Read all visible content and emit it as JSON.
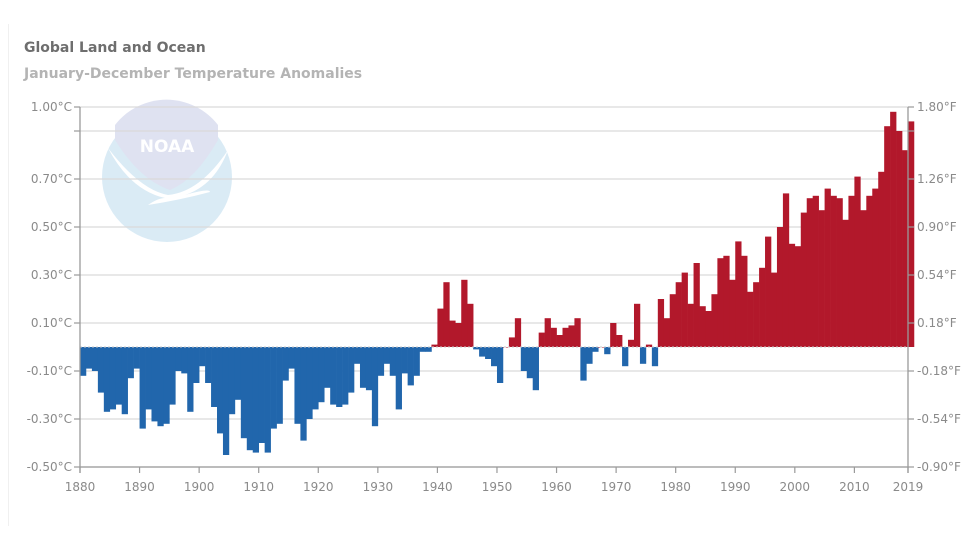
{
  "header": {
    "title": "Global Land and Ocean",
    "subtitle": "January-December Temperature Anomalies"
  },
  "logo": {
    "text": "NOAA"
  },
  "colors": {
    "positive": "#b2182b",
    "negative": "#2166ac",
    "grid": "#d9d9d9",
    "axis": "#9a9a9a",
    "text": "#8a8a8a"
  },
  "chart_data": {
    "type": "bar",
    "title": "Global Land and Ocean",
    "subtitle": "January-December Temperature Anomalies",
    "xlabel": "",
    "ylabel": "",
    "ylim": [
      -0.5,
      1.0
    ],
    "xlim": [
      1880,
      2019
    ],
    "grid": true,
    "y_left_ticks": [
      {
        "value": 1.0,
        "label": "1.00°C"
      },
      {
        "value": 0.9,
        "label": ""
      },
      {
        "value": 0.7,
        "label": "0.70°C"
      },
      {
        "value": 0.5,
        "label": "0.50°C"
      },
      {
        "value": 0.3,
        "label": "0.30°C"
      },
      {
        "value": 0.1,
        "label": "0.10°C"
      },
      {
        "value": -0.1,
        "label": "-0.10°C"
      },
      {
        "value": -0.3,
        "label": "-0.30°C"
      },
      {
        "value": -0.5,
        "label": "-0.50°C"
      }
    ],
    "y_right_ticks": [
      {
        "value": 1.0,
        "label": "1.80°F"
      },
      {
        "value": 0.9,
        "label": ""
      },
      {
        "value": 0.7,
        "label": "1.26°F"
      },
      {
        "value": 0.5,
        "label": "0.90°F"
      },
      {
        "value": 0.3,
        "label": "0.54°F"
      },
      {
        "value": 0.1,
        "label": "0.18°F"
      },
      {
        "value": -0.1,
        "label": "-0.18°F"
      },
      {
        "value": -0.3,
        "label": "-0.54°F"
      },
      {
        "value": -0.5,
        "label": "-0.90°F"
      }
    ],
    "x_ticks": [
      "1880",
      "1890",
      "1900",
      "1910",
      "1920",
      "1930",
      "1940",
      "1950",
      "1960",
      "1970",
      "1980",
      "1990",
      "2000",
      "2010",
      "2019"
    ],
    "start_year": 1880,
    "values": [
      -0.12,
      -0.09,
      -0.1,
      -0.19,
      -0.27,
      -0.26,
      -0.24,
      -0.28,
      -0.13,
      -0.09,
      -0.34,
      -0.26,
      -0.31,
      -0.33,
      -0.32,
      -0.24,
      -0.1,
      -0.11,
      -0.27,
      -0.15,
      -0.08,
      -0.15,
      -0.25,
      -0.36,
      -0.45,
      -0.28,
      -0.22,
      -0.38,
      -0.43,
      -0.44,
      -0.4,
      -0.44,
      -0.34,
      -0.32,
      -0.14,
      -0.09,
      -0.32,
      -0.39,
      -0.3,
      -0.26,
      -0.23,
      -0.17,
      -0.24,
      -0.25,
      -0.24,
      -0.19,
      -0.07,
      -0.17,
      -0.18,
      -0.33,
      -0.12,
      -0.07,
      -0.12,
      -0.26,
      -0.11,
      -0.16,
      -0.12,
      -0.02,
      -0.02,
      0.01,
      0.16,
      0.27,
      0.11,
      0.1,
      0.28,
      0.18,
      -0.01,
      -0.04,
      -0.05,
      -0.08,
      -0.15,
      0.0,
      0.04,
      0.12,
      -0.1,
      -0.13,
      -0.18,
      0.06,
      0.12,
      0.08,
      0.05,
      0.08,
      0.09,
      0.12,
      -0.14,
      -0.07,
      -0.02,
      0.0,
      -0.03,
      0.1,
      0.05,
      -0.08,
      0.03,
      0.18,
      -0.07,
      0.01,
      -0.08,
      0.2,
      0.12,
      0.22,
      0.27,
      0.31,
      0.18,
      0.35,
      0.17,
      0.15,
      0.22,
      0.37,
      0.38,
      0.28,
      0.44,
      0.38,
      0.23,
      0.27,
      0.33,
      0.46,
      0.31,
      0.5,
      0.64,
      0.43,
      0.42,
      0.56,
      0.62,
      0.63,
      0.57,
      0.66,
      0.63,
      0.62,
      0.53,
      0.63,
      0.71,
      0.57,
      0.63,
      0.66,
      0.73,
      0.92,
      0.98,
      0.9,
      0.82,
      0.94
    ]
  }
}
